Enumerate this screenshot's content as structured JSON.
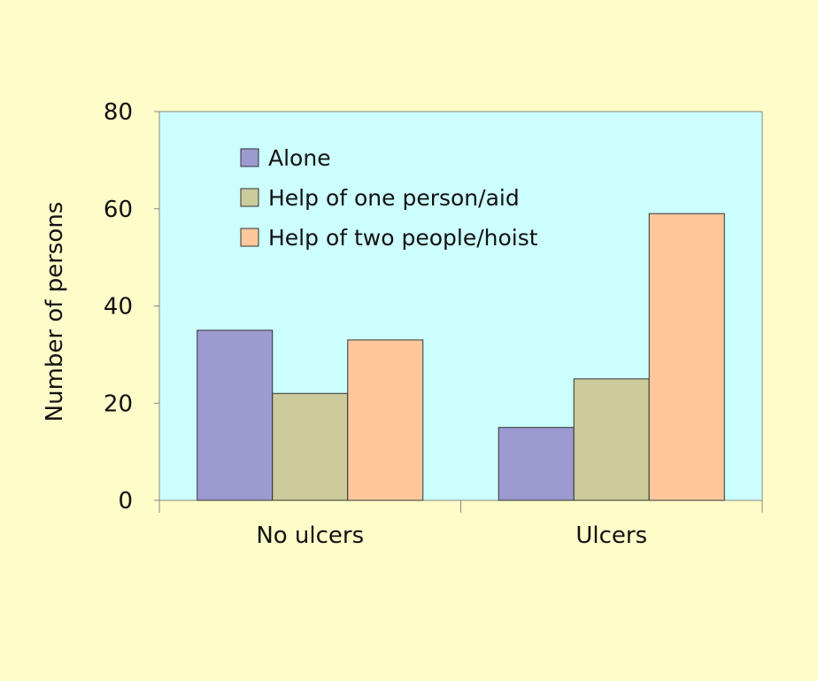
{
  "chart_data": {
    "type": "bar",
    "title": "",
    "xlabel": "",
    "ylabel": "Number of persons",
    "ylim": [
      0,
      80
    ],
    "yticks": [
      0,
      20,
      40,
      60,
      80
    ],
    "grid": false,
    "legend_position": "top-left",
    "categories": [
      "No ulcers",
      "Ulcers"
    ],
    "series": [
      {
        "name": "Alone",
        "values": [
          35,
          15
        ],
        "color": "#9c9ad0"
      },
      {
        "name": "Help of one person/aid",
        "values": [
          22,
          25
        ],
        "color": "#cbcb9c"
      },
      {
        "name": "Help of two people/hoist",
        "values": [
          33,
          59
        ],
        "color": "#fec89c"
      }
    ],
    "colors": {
      "page_background": "#fefcc8",
      "plot_background": "#ccfefe",
      "axis": "#888888",
      "bar_outline": "#333333"
    }
  }
}
